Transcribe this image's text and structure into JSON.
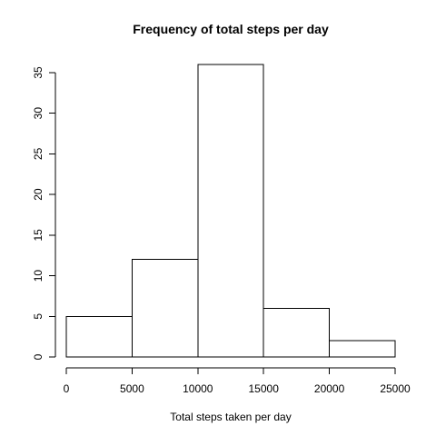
{
  "chart_data": {
    "type": "bar",
    "title": "Frequency of total steps per day",
    "xlabel": "Total steps taken per day",
    "ylabel": "",
    "bins": [
      {
        "x0": 0,
        "x1": 5000,
        "count": 5
      },
      {
        "x0": 5000,
        "x1": 10000,
        "count": 12
      },
      {
        "x0": 10000,
        "x1": 15000,
        "count": 36
      },
      {
        "x0": 15000,
        "x1": 20000,
        "count": 6
      },
      {
        "x0": 20000,
        "x1": 25000,
        "count": 2
      }
    ],
    "xlim": [
      0,
      25000
    ],
    "ylim": [
      0,
      36
    ],
    "x_ticks": [
      0,
      5000,
      10000,
      15000,
      20000,
      25000
    ],
    "x_tick_labels": [
      "0",
      "5000",
      "10000",
      "15000",
      "20000",
      "25000"
    ],
    "y_ticks": [
      0,
      5,
      10,
      15,
      20,
      25,
      30,
      35
    ],
    "y_tick_labels": [
      "0",
      "5",
      "10",
      "15",
      "20",
      "25",
      "30",
      "35"
    ],
    "bar_fill": "#ffffff",
    "bar_stroke": "#000000",
    "grid": false,
    "legend": "none"
  }
}
